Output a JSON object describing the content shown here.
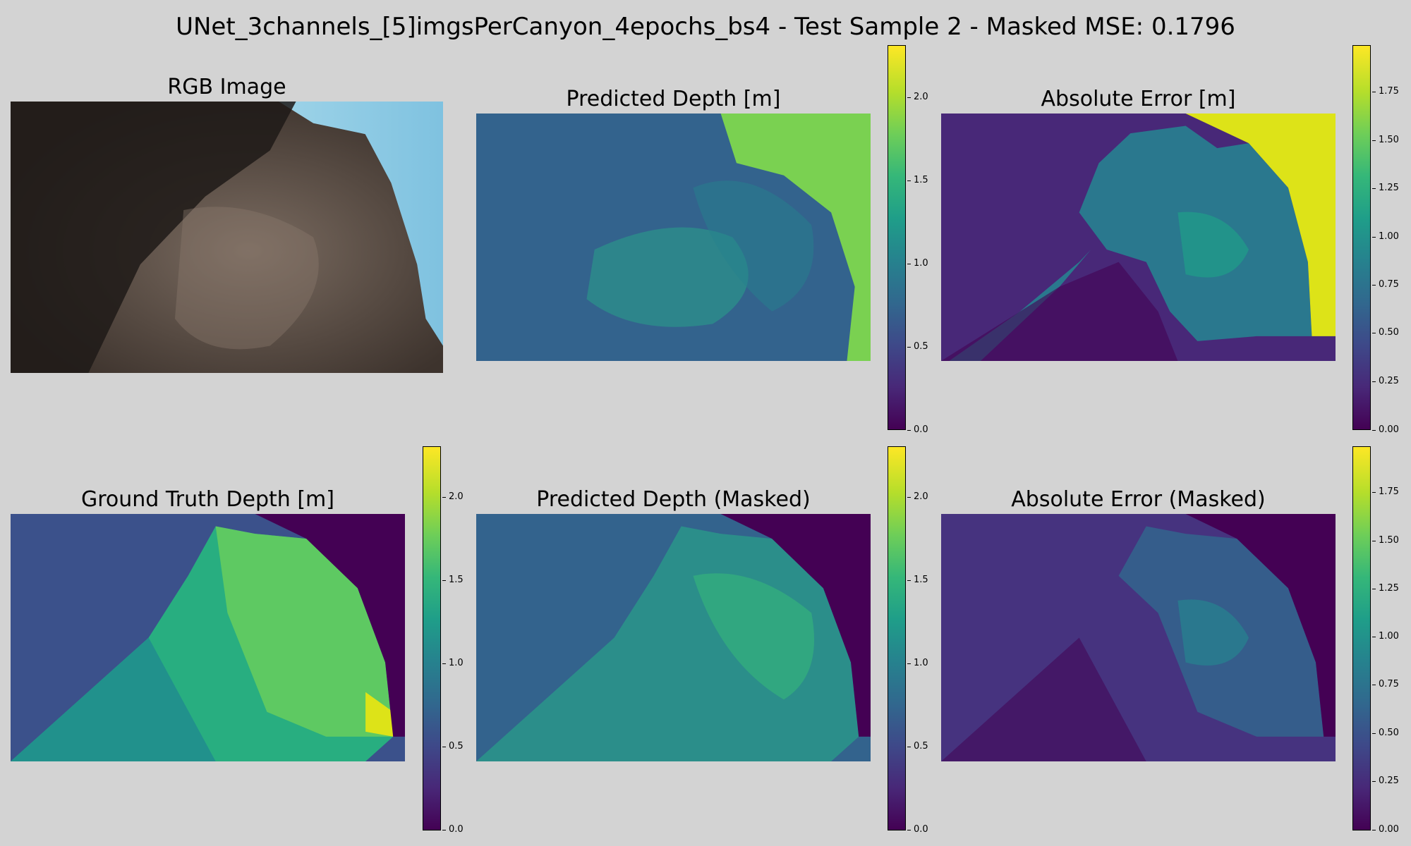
{
  "figure": {
    "title": "UNet_3channels_[5]imgsPerCanyon_4epochs_bs4 - Test Sample 2 - Masked MSE: 0.1796"
  },
  "panels": [
    {
      "id": "rgb",
      "title": "RGB Image"
    },
    {
      "id": "pred_depth",
      "title": "Predicted Depth [m]",
      "colorbar": {
        "ticks": [
          "0.0",
          "0.5",
          "1.0",
          "1.5",
          "2.0"
        ]
      }
    },
    {
      "id": "abs_error",
      "title": "Absolute Error [m]",
      "colorbar": {
        "ticks": [
          "0.00",
          "0.25",
          "0.50",
          "0.75",
          "1.00",
          "1.25",
          "1.50",
          "1.75"
        ]
      }
    },
    {
      "id": "gt_depth",
      "title": "Ground Truth Depth [m]",
      "colorbar": {
        "ticks": [
          "0.0",
          "0.5",
          "1.0",
          "1.5",
          "2.0"
        ]
      }
    },
    {
      "id": "pred_depth_masked",
      "title": "Predicted Depth (Masked)",
      "colorbar": {
        "ticks": [
          "0.0",
          "0.5",
          "1.0",
          "1.5",
          "2.0"
        ]
      }
    },
    {
      "id": "abs_error_masked",
      "title": "Absolute Error (Masked)",
      "colorbar": {
        "ticks": [
          "0.00",
          "0.25",
          "0.50",
          "0.75",
          "1.00",
          "1.25",
          "1.50",
          "1.75"
        ]
      }
    }
  ],
  "colormap": "viridis",
  "colors": {
    "background": "#d3d3d3",
    "viridis_low": "#440154",
    "viridis_high": "#fde725"
  }
}
